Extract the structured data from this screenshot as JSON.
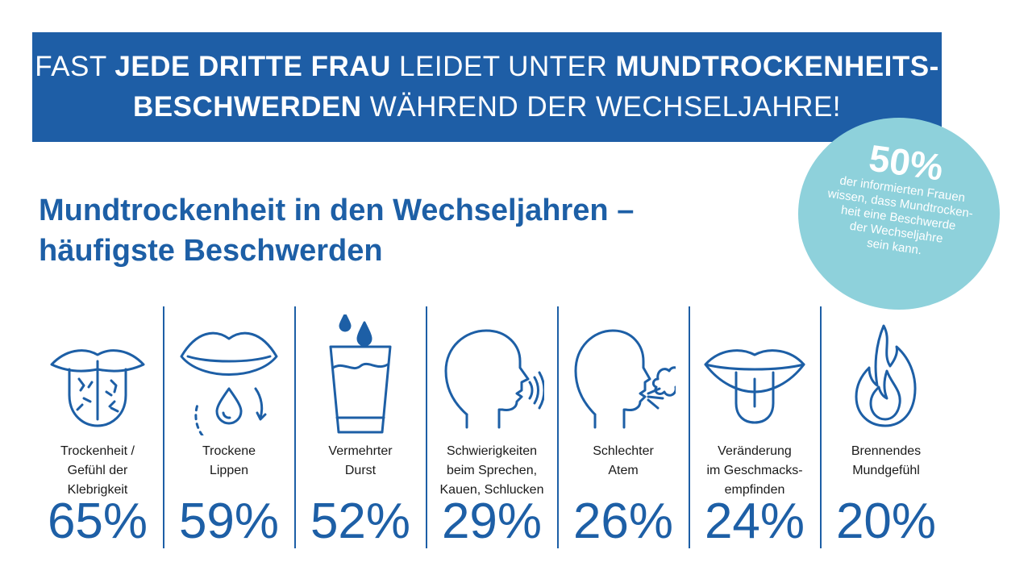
{
  "banner": {
    "line1_a": "FAST ",
    "line1_b": "JEDE DRITTE FRAU",
    "line1_c": " LEIDET UNTER ",
    "line1_d": "MUNDTROCKENHEITS-",
    "line2_a": "BESCHWERDEN",
    "line2_b": " WÄHREND DER WECHSELJAHRE!"
  },
  "headline": {
    "line1": "Mundtrockenheit in den Wechseljahren –",
    "line2": "häufigste Beschwerden"
  },
  "badge": {
    "value": "50%",
    "lines": [
      "der informierten Frauen",
      "wissen, dass Mundtrocken-",
      "heit eine Beschwerde",
      "der Wechseljahre",
      "sein kann."
    ]
  },
  "colors": {
    "primary": "#1e5ea6",
    "badge": "#8ed1db",
    "text": "#1a1a1a"
  },
  "chart_data": {
    "type": "bar",
    "categories": [
      "Trockenheit / Gefühl der Klebrigkeit",
      "Trockene Lippen",
      "Vermehrter Durst",
      "Schwierigkeiten beim Sprechen, Kauen, Schlucken",
      "Schlechter Atem",
      "Veränderung im Geschmacks-empfinden",
      "Brennendes Mundgefühl"
    ],
    "values": [
      65,
      59,
      52,
      29,
      26,
      24,
      20
    ],
    "unit": "%",
    "title": "Mundtrockenheit in den Wechseljahren – häufigste Beschwerden",
    "items": [
      {
        "label_lines": [
          "Trockenheit /",
          "Gefühl der",
          "Klebrigkeit"
        ],
        "pct": "65%",
        "icon": "tongue-icon"
      },
      {
        "label_lines": [
          "Trockene",
          "Lippen"
        ],
        "pct": "59%",
        "icon": "lips-icon"
      },
      {
        "label_lines": [
          "Vermehrter",
          "Durst"
        ],
        "pct": "52%",
        "icon": "water-glass-icon"
      },
      {
        "label_lines": [
          "Schwierigkeiten",
          "beim Sprechen,",
          "Kauen, Schlucken"
        ],
        "pct": "29%",
        "icon": "speaking-head-icon"
      },
      {
        "label_lines": [
          "Schlechter",
          "Atem"
        ],
        "pct": "26%",
        "icon": "breath-head-icon"
      },
      {
        "label_lines": [
          "Veränderung",
          "im Geschmacks-",
          "empfinden"
        ],
        "pct": "24%",
        "icon": "open-mouth-icon"
      },
      {
        "label_lines": [
          "Brennendes",
          "Mundgefühl"
        ],
        "pct": "20%",
        "icon": "flame-icon"
      }
    ]
  }
}
